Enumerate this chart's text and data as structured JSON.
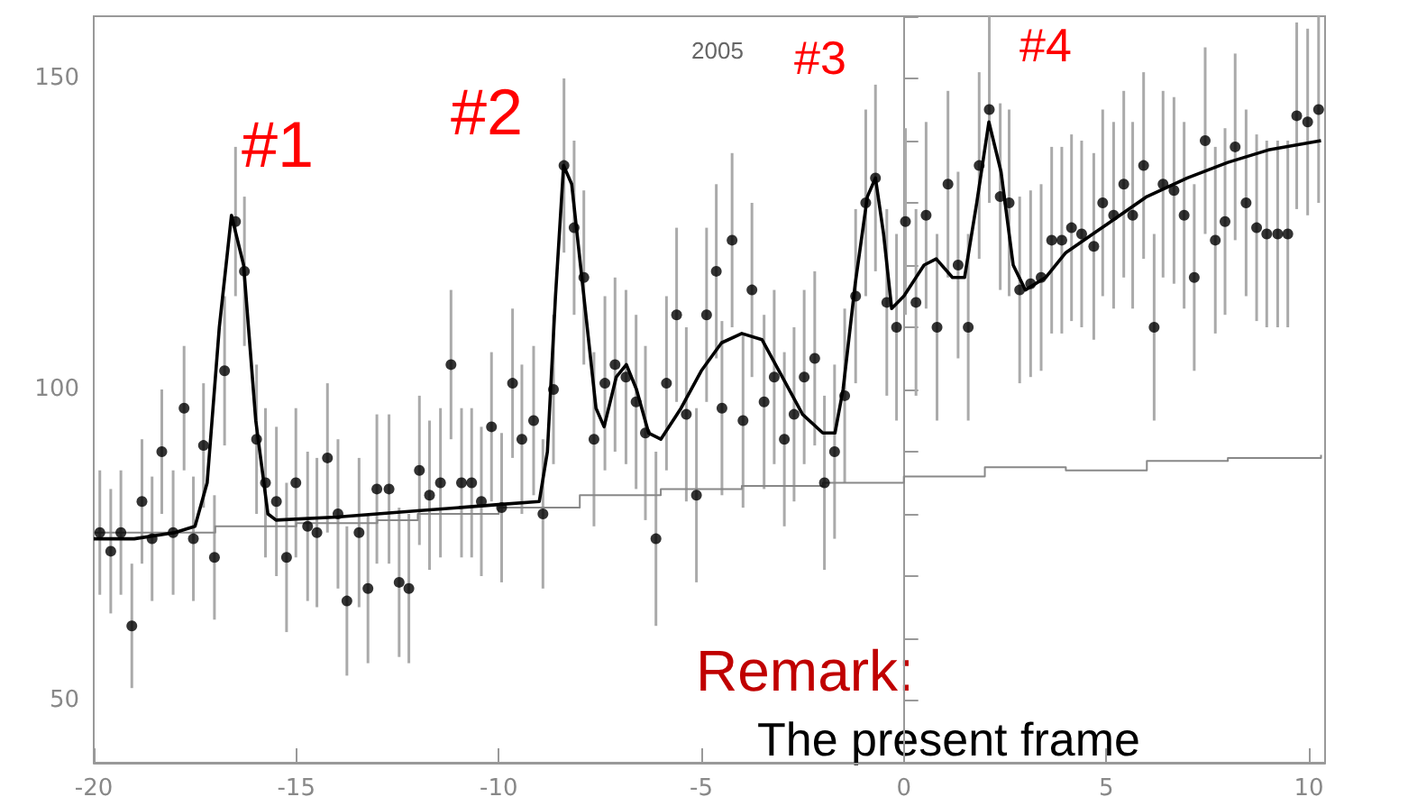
{
  "chart_data": {
    "type": "scatter",
    "xlim": [
      -20,
      10.4
    ],
    "ylim": [
      40,
      160
    ],
    "xticks": [
      -20,
      -15,
      -10,
      -5,
      0,
      5,
      10
    ],
    "yticks": [
      {
        "value": 40,
        "label": null
      },
      50,
      {
        "value": 60,
        "label": null
      },
      {
        "value": 70,
        "label": null
      },
      {
        "value": 80,
        "label": null
      },
      {
        "value": 90,
        "label": null
      },
      100,
      {
        "value": 110,
        "label": null
      },
      {
        "value": 120,
        "label": null
      },
      {
        "value": 130,
        "label": null
      },
      {
        "value": 140,
        "label": null
      },
      150,
      {
        "value": 160,
        "label": null
      }
    ],
    "annotations": [
      "#1",
      "#2",
      "#3",
      "#4",
      "2005",
      "Remark:",
      "The present frame"
    ],
    "series": [
      {
        "color": "#000000",
        "marker": "circle",
        "x": [
          -19.85,
          -19.58,
          -19.33,
          -19.06,
          -18.81,
          -18.56,
          -18.32,
          -18.04,
          -17.77,
          -17.54,
          -17.29,
          -17.02,
          -16.77,
          -16.5,
          -16.28,
          -15.98,
          -15.76,
          -15.49,
          -15.24,
          -15.01,
          -14.72,
          -14.49,
          -14.23,
          -13.97,
          -13.75,
          -13.45,
          -13.23,
          -13.01,
          -12.71,
          -12.46,
          -12.22,
          -11.96,
          -11.71,
          -11.44,
          -11.18,
          -10.92,
          -10.67,
          -10.43,
          -10.18,
          -9.93,
          -9.66,
          -9.43,
          -9.14,
          -8.91,
          -8.65,
          -8.39,
          -8.14,
          -7.9,
          -7.65,
          -7.38,
          -7.13,
          -6.86,
          -6.61,
          -6.38,
          -6.12,
          -5.86,
          -5.61,
          -5.37,
          -5.12,
          -4.87,
          -4.63,
          -4.49,
          -4.24,
          -3.97,
          -3.75,
          -3.45,
          -3.2,
          -2.95,
          -2.71,
          -2.46,
          -2.2,
          -1.96,
          -1.71,
          -1.46,
          -1.19,
          -0.94,
          -0.7,
          -0.42,
          -0.18,
          0.04,
          0.3,
          0.55,
          0.82,
          1.09,
          1.34,
          1.59,
          1.86,
          2.11,
          2.38,
          2.6,
          2.86,
          3.13,
          3.39,
          3.65,
          3.9,
          4.14,
          4.39,
          4.69,
          4.91,
          5.18,
          5.43,
          5.65,
          5.92,
          6.18,
          6.4,
          6.67,
          6.92,
          7.17,
          7.44,
          7.69,
          7.93,
          8.18,
          8.45,
          8.71,
          8.96,
          9.23,
          9.48,
          9.7,
          9.97,
          10.24
        ],
        "values": [
          77,
          74,
          77,
          62,
          82,
          76,
          90,
          77,
          97,
          76,
          91,
          73,
          103,
          127,
          119,
          92,
          85,
          82,
          73,
          85,
          78,
          77,
          89,
          80,
          66,
          77,
          68,
          84,
          84,
          69,
          68,
          87,
          83,
          85,
          104,
          85,
          85,
          82,
          94,
          81,
          101,
          92,
          95,
          80,
          100,
          136,
          126,
          118,
          92,
          101,
          104,
          102,
          98,
          93,
          76,
          101,
          112,
          96,
          83,
          112,
          119,
          97,
          124,
          95,
          116,
          98,
          102,
          92,
          96,
          102,
          105,
          85,
          90,
          99,
          115,
          130,
          134,
          114,
          110,
          127,
          114,
          128,
          110,
          133,
          120,
          110,
          136,
          145,
          131,
          130,
          116,
          117,
          118,
          124,
          124,
          126,
          125,
          123,
          130,
          128,
          133,
          128,
          136,
          110,
          133,
          132,
          128,
          118,
          140,
          124,
          127,
          139,
          130,
          126,
          125,
          125,
          125,
          144,
          143,
          145
        ],
        "errors": [
          10,
          10,
          10,
          10,
          10,
          10,
          10,
          10,
          10,
          10,
          10,
          10,
          12,
          12,
          12,
          12,
          12,
          12,
          12,
          12,
          12,
          12,
          12,
          12,
          12,
          12,
          12,
          12,
          12,
          12,
          12,
          12,
          12,
          12,
          12,
          12,
          12,
          12,
          12,
          12,
          12,
          12,
          12,
          12,
          12,
          14,
          14,
          14,
          14,
          14,
          14,
          14,
          14,
          14,
          14,
          14,
          14,
          14,
          14,
          14,
          14,
          14,
          14,
          14,
          14,
          14,
          14,
          14,
          14,
          14,
          14,
          14,
          14,
          14,
          14,
          15,
          15,
          15,
          15,
          15,
          15,
          15,
          15,
          15,
          15,
          15,
          15,
          15,
          15,
          15,
          15,
          15,
          15,
          15,
          15,
          15,
          15,
          15,
          15,
          15,
          15,
          15,
          15,
          15,
          15,
          15,
          15,
          15,
          15,
          15,
          15,
          15,
          15,
          15,
          15,
          15,
          15,
          15,
          15,
          15
        ]
      },
      {
        "type": "line",
        "color": "#000000",
        "x": [
          -20,
          -19,
          -18,
          -17.5,
          -17.2,
          -16.9,
          -16.6,
          -16.3,
          -16,
          -15.7,
          -15.5,
          -14,
          -12,
          -10,
          -9,
          -8.8,
          -8.6,
          -8.4,
          -8.2,
          -7.9,
          -7.6,
          -7.4,
          -7.1,
          -6.85,
          -6.6,
          -6.3,
          -6,
          -5.5,
          -5,
          -4.5,
          -4,
          -3.5,
          -3,
          -2.5,
          -2,
          -1.7,
          -1.5,
          -1.2,
          -0.9,
          -0.7,
          -0.5,
          -0.3,
          0,
          0.5,
          0.8,
          1.2,
          1.5,
          1.8,
          2.1,
          2.4,
          2.7,
          3,
          3.5,
          4,
          5,
          6,
          7,
          8,
          9,
          10.3
        ],
        "values": [
          76,
          76,
          77,
          78,
          85,
          110,
          128,
          120,
          95,
          80,
          79,
          79.5,
          80.5,
          81.5,
          82,
          90,
          115,
          136,
          133,
          115,
          97,
          94,
          102,
          104,
          100,
          93,
          92,
          97,
          103,
          107.5,
          109,
          108,
          102,
          96,
          93,
          93,
          100,
          117,
          131,
          134,
          125,
          113,
          115,
          120,
          121,
          118,
          118,
          130,
          143,
          135,
          120,
          116,
          118,
          122,
          126.5,
          131,
          134,
          136.5,
          138.5,
          140
        ]
      },
      {
        "type": "step",
        "color": "#888888",
        "x": [
          -20,
          -18,
          -17,
          -15,
          -13,
          -12,
          -10,
          -8,
          -6,
          -4,
          -2,
          0,
          2,
          4,
          6,
          8,
          10.3
        ],
        "values": [
          77,
          77,
          78,
          78.5,
          79,
          80,
          81,
          83,
          84,
          84.5,
          85,
          86,
          87.5,
          87,
          88.5,
          89,
          89.5
        ]
      }
    ]
  }
}
